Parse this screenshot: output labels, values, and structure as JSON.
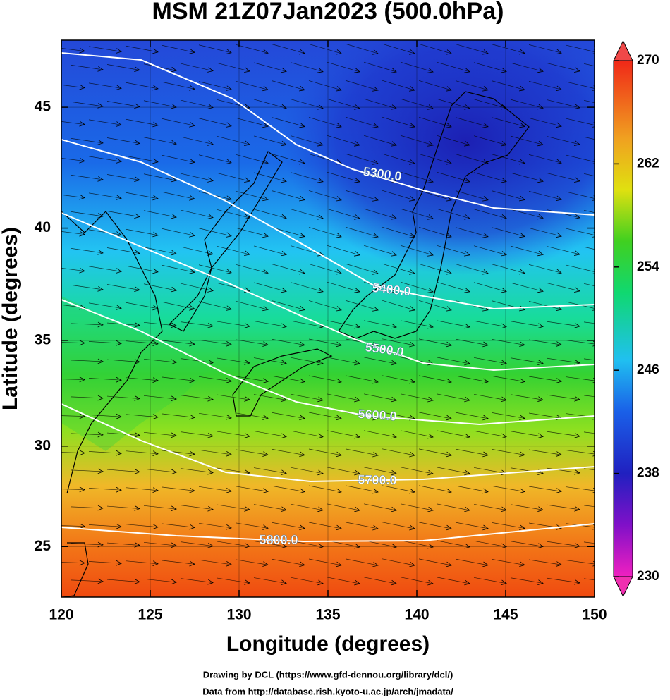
{
  "chart_data": {
    "type": "map",
    "title": "MSM 21Z07Jan2023 (500.0hPa)",
    "xlabel": "Longitude (degrees)",
    "ylabel": "Latitude  (degrees)",
    "projection": "mercator",
    "xlim": [
      120,
      150
    ],
    "ylim": [
      22.4,
      47.6
    ],
    "xticks": [
      120,
      125,
      130,
      135,
      140,
      145,
      150
    ],
    "yticks": [
      25,
      30,
      35,
      40,
      45
    ],
    "grid": true,
    "colorbar": {
      "lim": [
        230,
        270
      ],
      "ticks": [
        230,
        238,
        246,
        254,
        262,
        270
      ]
    },
    "contours": {
      "values": [
        5300,
        5400,
        5500,
        5600,
        5700,
        5800
      ],
      "value_labels": [
        "5300.0",
        "5400.0",
        "5500.0",
        "5600.0",
        "5700.0",
        "5800.0"
      ]
    },
    "credits": [
      "Drawing by DCL (https://www.gfd-dennou.org/library/dcl/)",
      "Data from http://database.rish.kyoto-u.ac.jp/arch/jmadata/"
    ]
  }
}
